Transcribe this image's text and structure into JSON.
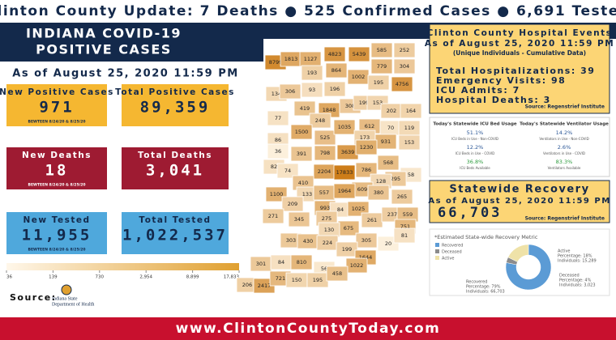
{
  "header": {
    "headline": "Clinton County Update: 7 Deaths ● 525 Confirmed Cases ● 6,691 Tested"
  },
  "left": {
    "title_line1": "INDIANA COVID-19",
    "title_line2": "POSITIVE CASES",
    "date": "As of August 25, 2020 11:59 PM",
    "cards": [
      {
        "label": "New Positive Cases",
        "value": "971",
        "note": "BEWTEEN 8/24/20 & 8/25/20"
      },
      {
        "label": "Total Positive Cases",
        "value": "89,359"
      },
      {
        "label": "New Deaths",
        "value": "18",
        "note": "BEWTEEN 8/24/20 & 8/25/20"
      },
      {
        "label": "Total Deaths",
        "value": "3,041"
      },
      {
        "label": "New Tested",
        "value": "11,955",
        "note": "BEWTEEN 8/24/20 & 8/25/20"
      },
      {
        "label": "Total Tested",
        "value": "1,022,537"
      }
    ],
    "legend_ticks": [
      36,
      139,
      730,
      {
        "value": 2954,
        "label": "2,954"
      },
      {
        "value": 8899,
        "label": "8,899"
      },
      {
        "value": 17833,
        "label": "17,833"
      }
    ],
    "source_label": "Source:",
    "source_org_line1": "Indiana State",
    "source_org_line2": "Department of Health"
  },
  "map": {
    "county_cases": [
      8799,
      1813,
      1127,
      4823,
      5439,
      585,
      252,
      193,
      864,
      1002,
      779,
      304,
      134,
      306,
      93,
      196,
      195,
      4756,
      419,
      1848,
      308,
      199,
      153,
      202,
      164,
      77,
      248,
      612,
      70,
      119,
      1500,
      525,
      1035,
      173,
      931,
      153,
      86,
      36,
      391,
      798,
      3639,
      1230,
      82,
      74,
      2204,
      17833,
      786,
      568,
      58,
      295,
      410,
      128,
      609,
      1100,
      133,
      557,
      1964,
      380,
      265,
      209,
      993,
      84,
      1025,
      261,
      237,
      559,
      271,
      345,
      275,
      675,
      130,
      303,
      430,
      224,
      305,
      751,
      199,
      1644,
      20,
      81,
      301,
      84,
      810,
      56,
      1022,
      206,
      2417,
      721,
      150,
      195,
      458
    ]
  },
  "hospital": {
    "title": "Clinton County Hospital Events",
    "date": "As of August 25, 2020 11:59 PM",
    "subtitle": "(Unique Individuals - Cumulative Data)",
    "lines": [
      "Total Hospitalizations: 39",
      "Emergency Visits: 98",
      "ICU Admits: 7",
      "Hospital Deaths: 3"
    ],
    "source": "Source: Regenstrief Institute"
  },
  "usage": [
    {
      "title": "Today's Statewide ICU Bed Usage",
      "items": [
        {
          "value": "51.1%",
          "label": "ICU Beds in Use - Non-COVID"
        },
        {
          "value": "12.2%",
          "label": "ICU Beds in Use - COVID"
        },
        {
          "value": "36.8%",
          "label": "ICU Beds Available"
        }
      ]
    },
    {
      "title": "Today's Statewide Ventilator Usage",
      "items": [
        {
          "value": "14.2%",
          "label": "Ventilators in Use - Non-COVID"
        },
        {
          "value": "2.6%",
          "label": "Ventilators in Use - COVID"
        },
        {
          "value": "83.3%",
          "label": "Ventilators Available"
        }
      ]
    }
  ],
  "recovery": {
    "title": "Statewide Recovery",
    "date": "As of August 25, 2020 11:59 PM",
    "value": "66,703",
    "source": "Source: Regenstrief Institute",
    "metric_title": "*Estimated State-wide Recovery Metric",
    "segments": [
      {
        "name": "Recovered",
        "color": "#5b9bd5",
        "percentage": 79,
        "percentage_label": "Percentage: 79%",
        "individuals": "Individuals: 66,703"
      },
      {
        "name": "Deceased",
        "color": "#8c8c8c",
        "percentage": 4,
        "percentage_label": "Percentage: 4%",
        "individuals": "Individuals: 3,023"
      },
      {
        "name": "Active",
        "color": "#efe2a8",
        "percentage": 18,
        "percentage_label": "Percentage: 18%",
        "individuals": "Individuals: 15,289"
      }
    ]
  },
  "footer": {
    "url": "www.ClintonCountyToday.com"
  }
}
